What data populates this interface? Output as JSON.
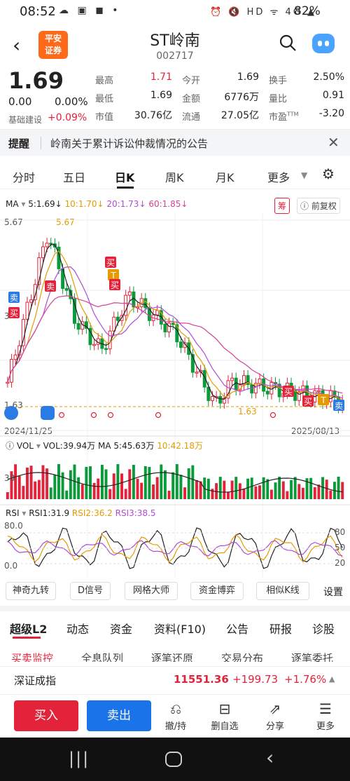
{
  "status": {
    "time": "08:52",
    "left_icons": "☁ ▣ ◼ •",
    "right_icons": "⏰ 🔇 HD ᯤ 4G ▲",
    "battery": "82%"
  },
  "header": {
    "logo_line1": "平安",
    "logo_line2": "证券",
    "title": "ST岭南",
    "code": "002717"
  },
  "quote": {
    "price": "1.69",
    "change": "0.00",
    "change_pct": "0.00%",
    "basis_label": "基础建设",
    "basis_value": "+0.09%",
    "rows": [
      [
        {
          "k": "最高",
          "v": "1.71",
          "c": "red"
        },
        {
          "k": "今开",
          "v": "1.69",
          "c": ""
        },
        {
          "k": "换手",
          "v": "2.50%",
          "c": ""
        }
      ],
      [
        {
          "k": "最低",
          "v": "1.69",
          "c": ""
        },
        {
          "k": "金额",
          "v": "6776万",
          "c": ""
        },
        {
          "k": "量比",
          "v": "0.91",
          "c": ""
        }
      ],
      [
        {
          "k": "市值",
          "v": "30.76亿",
          "c": ""
        },
        {
          "k": "流通",
          "v": "27.05亿",
          "c": ""
        },
        {
          "k": "市盈TTM",
          "v": "-3.20",
          "c": ""
        }
      ]
    ]
  },
  "notice": {
    "label": "提醒",
    "text": "岭南关于累计诉讼仲裁情况的公告"
  },
  "tabs": [
    "分时",
    "五日",
    "日K",
    "周K",
    "月K",
    "更多"
  ],
  "ma": {
    "label": "MA",
    "items": [
      {
        "t": "5:1.69↓",
        "c": "#222"
      },
      {
        "t": "10:1.70↓",
        "c": "#e69a00"
      },
      {
        "t": "20:1.73↓",
        "c": "#b04bd6"
      },
      {
        "t": "60:1.85↓",
        "c": "#d6409a"
      }
    ],
    "chip": "筹",
    "fq": "前复权"
  },
  "kline": {
    "y_top": "5.67",
    "y_mid": "3",
    "y_low": "1.63",
    "hi_label": "5.67",
    "lo_label": "1.63",
    "date_start": "2024/11/25",
    "date_end": "2025/08/13"
  },
  "vol": {
    "label": "VOL",
    "text": "VOL:39.94万",
    "ma5": "MA 5:45.63万",
    "ma10": "10:42.18万",
    "y": "38"
  },
  "rsi": {
    "label": "RSI",
    "r1": "RSI1:31.9",
    "r2": "RSI2:36.2",
    "r3": "RSI3:38.5",
    "y_top": "80.0",
    "y_bot": "0.0",
    "r80": "80",
    "r50": "50",
    "r20": "20"
  },
  "tools": [
    "神奇九转",
    "D信号",
    "网格大师",
    "资金博弈",
    "相似K线",
    "设置"
  ],
  "subtabs": [
    "超级L2",
    "动态",
    "资金",
    "资料(F10)",
    "公告",
    "研报",
    "诊股"
  ],
  "subtabs2": [
    "买卖监控",
    "全息队列",
    "逐笔还原",
    "交易分布",
    "逐笔委托"
  ],
  "index": {
    "name": "深证成指",
    "value": "11551.36",
    "change": "+199.73",
    "pct": "+1.76%"
  },
  "bottom": {
    "buy": "买入",
    "sell": "卖出",
    "actions": [
      {
        "ic": "⎌",
        "t": "撤/持"
      },
      {
        "ic": "⊟",
        "t": "删自选"
      },
      {
        "ic": "⇗",
        "t": "分享"
      },
      {
        "ic": "☰",
        "t": "更多"
      }
    ]
  },
  "colors": {
    "up": "#e2233a",
    "down": "#0a9a3a",
    "ma5": "#222222",
    "ma10": "#e69a00",
    "ma20": "#b04bd6",
    "ma60": "#d6409a"
  }
}
